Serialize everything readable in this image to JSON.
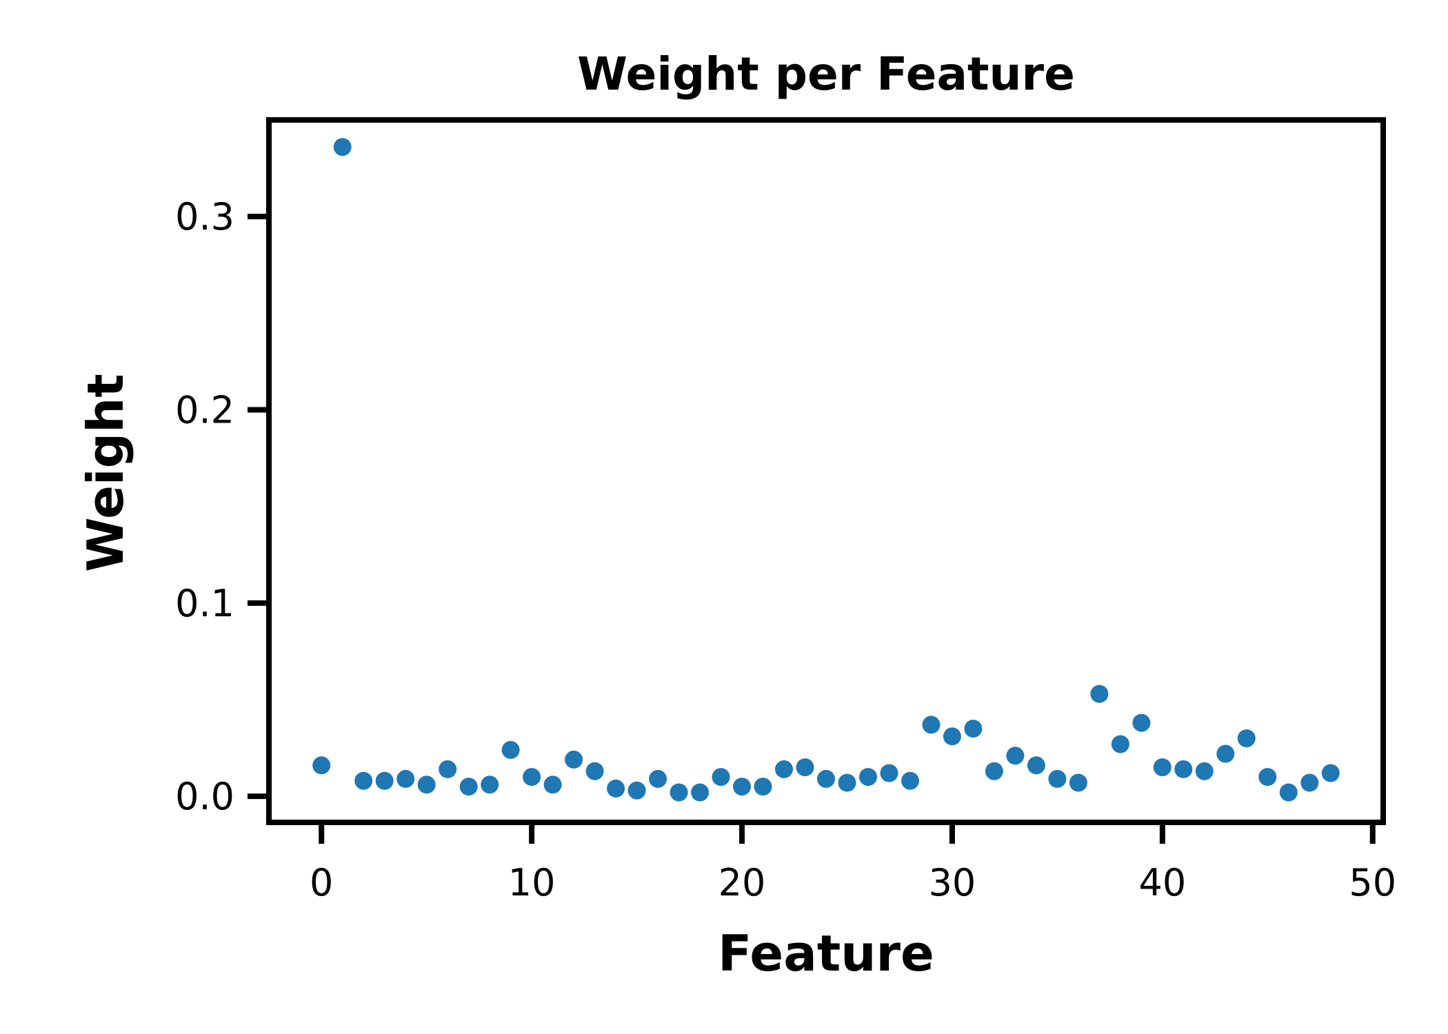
{
  "chart_data": {
    "type": "scatter",
    "title": "Weight per Feature",
    "xlabel": "Feature",
    "ylabel": "Weight",
    "xlim": [
      -2.5,
      50.5
    ],
    "ylim": [
      -0.0135,
      0.35
    ],
    "xticks": [
      0,
      10,
      20,
      30,
      40,
      50
    ],
    "yticks": [
      0.0,
      0.1,
      0.2,
      0.3
    ],
    "xtick_labels": [
      "0",
      "10",
      "20",
      "30",
      "40",
      "50"
    ],
    "ytick_labels": [
      "0.0",
      "0.1",
      "0.2",
      "0.3"
    ],
    "grid": false,
    "marker_color": "#1f77b4",
    "x": [
      0,
      1,
      2,
      3,
      4,
      5,
      6,
      7,
      8,
      9,
      10,
      11,
      12,
      13,
      14,
      15,
      16,
      17,
      18,
      19,
      20,
      21,
      22,
      23,
      24,
      25,
      26,
      27,
      28,
      29,
      30,
      31,
      32,
      33,
      34,
      35,
      36,
      37,
      38,
      39,
      40,
      41,
      42,
      43,
      44,
      45,
      46,
      47,
      48
    ],
    "y": [
      0.016,
      0.336,
      0.008,
      0.008,
      0.009,
      0.006,
      0.014,
      0.005,
      0.006,
      0.024,
      0.01,
      0.006,
      0.019,
      0.013,
      0.004,
      0.003,
      0.009,
      0.002,
      0.002,
      0.01,
      0.005,
      0.005,
      0.014,
      0.015,
      0.009,
      0.007,
      0.01,
      0.012,
      0.008,
      0.037,
      0.031,
      0.035,
      0.013,
      0.021,
      0.016,
      0.009,
      0.007,
      0.053,
      0.027,
      0.038,
      0.015,
      0.014,
      0.013,
      0.022,
      0.03,
      0.01,
      0.002,
      0.007,
      0.012
    ]
  }
}
